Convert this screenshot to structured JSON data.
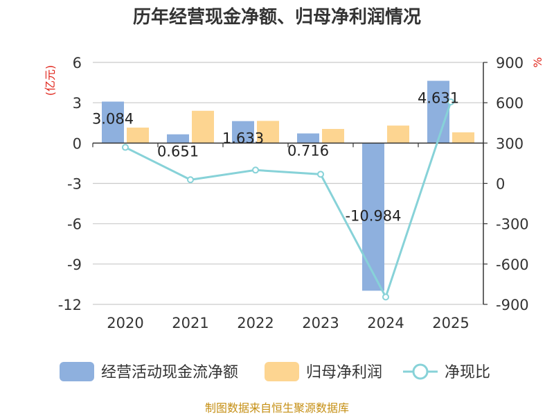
{
  "colors": {
    "ocf": "#8eb0de",
    "profit": "#fdd591",
    "ratio": "#87d2d8",
    "unit": "#e0241a",
    "footer": "#c58f14",
    "grid": "#c9c9c9",
    "axis": "#333333"
  },
  "chart_data": {
    "type": "bar+line",
    "title": "历年经营现金净额、归母净利润情况",
    "categories": [
      "2020",
      "2021",
      "2022",
      "2023",
      "2024",
      "2025"
    ],
    "series": [
      {
        "name": "经营活动现金流净额",
        "type": "bar",
        "axis": "left",
        "values": [
          3.084,
          0.651,
          1.633,
          0.716,
          -10.984,
          4.631
        ],
        "labels": [
          "3.084",
          "0.651",
          "1.633",
          "0.716",
          "-10.984",
          "4.631"
        ]
      },
      {
        "name": "归母净利润",
        "type": "bar",
        "axis": "left",
        "values": [
          1.15,
          2.4,
          1.65,
          1.05,
          1.3,
          0.8
        ]
      },
      {
        "name": "净现比",
        "type": "line",
        "axis": "right",
        "values": [
          268,
          27,
          99,
          68,
          -845,
          606
        ]
      }
    ],
    "left_axis": {
      "unit": "(亿元)",
      "min": -12,
      "max": 6,
      "ticks": [
        6,
        3,
        0,
        -3,
        -6,
        -9,
        -12
      ],
      "tick_labels": [
        "6",
        "3",
        "0",
        "-3",
        "-6",
        "-9",
        "-12"
      ]
    },
    "right_axis": {
      "unit": "%",
      "min": -900,
      "max": 900,
      "ticks": [
        900,
        600,
        300,
        0,
        -300,
        -600,
        -900
      ],
      "tick_labels": [
        "900",
        "600",
        "300",
        "0",
        "-300",
        "-600",
        "-900"
      ]
    },
    "legend": [
      "经营活动现金流净额",
      "归母净利润",
      "净现比"
    ],
    "legend_position": "bottom",
    "grid": true
  },
  "footer": "制图数据来自恒生聚源数据库"
}
